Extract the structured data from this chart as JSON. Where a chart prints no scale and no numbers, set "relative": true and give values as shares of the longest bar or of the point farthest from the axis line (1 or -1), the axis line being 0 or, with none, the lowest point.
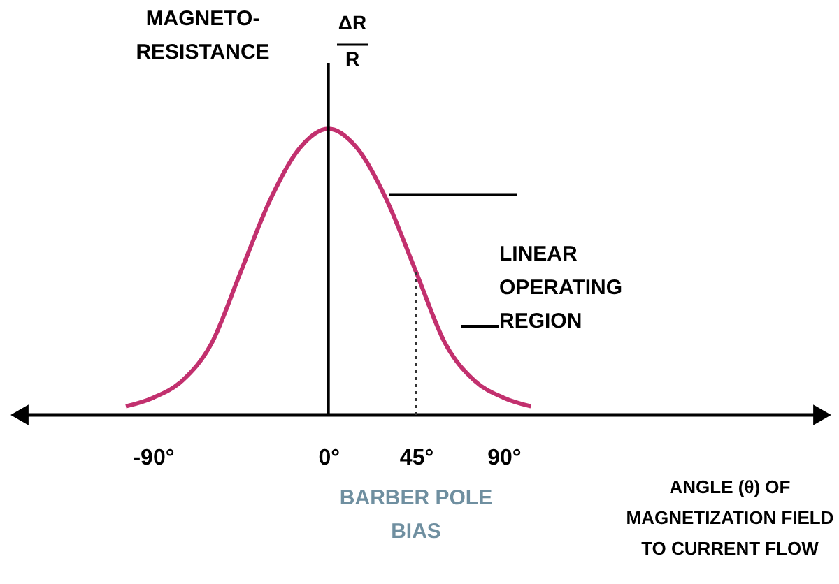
{
  "chart_data": {
    "type": "line",
    "relative": true,
    "ylabel": "MAGNETO-\nRESISTANCE",
    "xlabel": "ANGLE (θ) OF\nMAGNETIZATION FIELD\nTO CURRENT FLOW",
    "xlim": [
      -160,
      255
    ],
    "xticks": [
      {
        "value": -90,
        "label": "-90°"
      },
      {
        "value": 0,
        "label": "0°"
      },
      {
        "value": 45,
        "label": "45°"
      },
      {
        "value": 90,
        "label": "90°"
      }
    ],
    "series": [
      {
        "color": "#c2306e",
        "x": [
          -104,
          -90,
          -75,
          -60,
          -45,
          -30,
          -15,
          0,
          15,
          30,
          45,
          60,
          75,
          90,
          104
        ],
        "values": [
          0.03,
          0.06,
          0.12,
          0.25,
          0.5,
          0.75,
          0.93,
          1,
          0.93,
          0.75,
          0.5,
          0.25,
          0.12,
          0.06,
          0.03
        ]
      }
    ],
    "ref_lines": [
      {
        "axis": "x",
        "value": 0,
        "line_style": "solid"
      },
      {
        "axis": "x",
        "value": 45,
        "line_style": "dotted"
      },
      {
        "axis": "y",
        "value": 0.77
      },
      {
        "axis": "y",
        "value": 0.31,
        "label": "LINEAR\nOPERATING\nREGION"
      }
    ],
    "annotations": [
      "ΔR\nR",
      "BARBER POLE\nBIAS"
    ],
    "grid": false,
    "legend": false,
    "marker": "none",
    "line_style": "solid"
  }
}
